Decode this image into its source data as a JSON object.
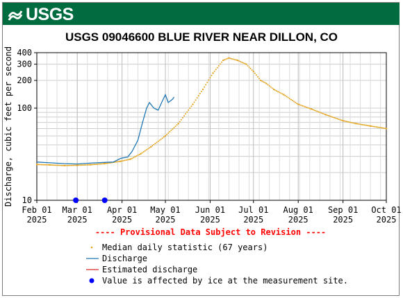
{
  "banner": {
    "logo_text": "USGS",
    "background_color": "#006c3f"
  },
  "chart_data": {
    "type": "line",
    "title": "USGS 09046600 BLUE RIVER NEAR DILLON, CO",
    "ylabel": "Discharge, cubic feet per second",
    "xlabel": "",
    "y_scale": "log",
    "ylim": [
      10,
      400
    ],
    "xlim": [
      "2025-02-01",
      "2025-10-01"
    ],
    "grid": true,
    "x_ticks": [
      {
        "date": "2025-02-01",
        "line1": "Feb 01",
        "line2": "2025"
      },
      {
        "date": "2025-03-01",
        "line1": "Mar 01",
        "line2": "2025"
      },
      {
        "date": "2025-04-01",
        "line1": "Apr 01",
        "line2": "2025"
      },
      {
        "date": "2025-05-01",
        "line1": "May 01",
        "line2": "2025"
      },
      {
        "date": "2025-06-01",
        "line1": "Jun 01",
        "line2": "2025"
      },
      {
        "date": "2025-07-01",
        "line1": "Jul 01",
        "line2": "2025"
      },
      {
        "date": "2025-08-01",
        "line1": "Aug 01",
        "line2": "2025"
      },
      {
        "date": "2025-09-01",
        "line1": "Sep 01",
        "line2": "2025"
      },
      {
        "date": "2025-10-01",
        "line1": "Oct 01",
        "line2": "2025"
      }
    ],
    "y_ticks": [
      {
        "value": 10,
        "label": "10"
      },
      {
        "value": 100,
        "label": "100"
      },
      {
        "value": 200,
        "label": "200"
      },
      {
        "value": 300,
        "label": "300"
      },
      {
        "value": 400,
        "label": "400"
      }
    ],
    "annotation": "---- Provisional Data Subject to Revision ----",
    "series": [
      {
        "name": "Median daily statistic (67 years)",
        "style": "dots",
        "color": "#e3a21a",
        "points": [
          {
            "x": "2025-02-01",
            "y": 24.5
          },
          {
            "x": "2025-02-10",
            "y": 24.2
          },
          {
            "x": "2025-02-20",
            "y": 23.8
          },
          {
            "x": "2025-03-01",
            "y": 24.0
          },
          {
            "x": "2025-03-10",
            "y": 24.3
          },
          {
            "x": "2025-03-20",
            "y": 25.0
          },
          {
            "x": "2025-03-31",
            "y": 26.5
          },
          {
            "x": "2025-04-07",
            "y": 28.0
          },
          {
            "x": "2025-04-14",
            "y": 32.0
          },
          {
            "x": "2025-04-21",
            "y": 38.0
          },
          {
            "x": "2025-05-01",
            "y": 50.0
          },
          {
            "x": "2025-05-10",
            "y": 68.0
          },
          {
            "x": "2025-05-20",
            "y": 110.0
          },
          {
            "x": "2025-05-27",
            "y": 160.0
          },
          {
            "x": "2025-06-03",
            "y": 240.0
          },
          {
            "x": "2025-06-10",
            "y": 330.0
          },
          {
            "x": "2025-06-14",
            "y": 350.0
          },
          {
            "x": "2025-06-20",
            "y": 330.0
          },
          {
            "x": "2025-06-26",
            "y": 300.0
          },
          {
            "x": "2025-07-01",
            "y": 250.0
          },
          {
            "x": "2025-07-06",
            "y": 200.0
          },
          {
            "x": "2025-07-10",
            "y": 185.0
          },
          {
            "x": "2025-07-15",
            "y": 160.0
          },
          {
            "x": "2025-07-22",
            "y": 140.0
          },
          {
            "x": "2025-08-01",
            "y": 110.0
          },
          {
            "x": "2025-08-10",
            "y": 98.0
          },
          {
            "x": "2025-08-20",
            "y": 85.0
          },
          {
            "x": "2025-09-01",
            "y": 73.0
          },
          {
            "x": "2025-09-10",
            "y": 68.0
          },
          {
            "x": "2025-09-20",
            "y": 64.0
          },
          {
            "x": "2025-10-01",
            "y": 60.0
          }
        ]
      },
      {
        "name": "Discharge",
        "style": "line",
        "color": "#1f77b4",
        "points": [
          {
            "x": "2025-02-01",
            "y": 26.0
          },
          {
            "x": "2025-02-10",
            "y": 25.5
          },
          {
            "x": "2025-02-20",
            "y": 25.0
          },
          {
            "x": "2025-03-01",
            "y": 24.8
          },
          {
            "x": "2025-03-10",
            "y": 25.3
          },
          {
            "x": "2025-03-20",
            "y": 25.8
          },
          {
            "x": "2025-03-26",
            "y": 26.0
          },
          {
            "x": "2025-03-31",
            "y": 28.5
          },
          {
            "x": "2025-04-05",
            "y": 29.5
          },
          {
            "x": "2025-04-08",
            "y": 34.0
          },
          {
            "x": "2025-04-12",
            "y": 45.0
          },
          {
            "x": "2025-04-15",
            "y": 68.0
          },
          {
            "x": "2025-04-18",
            "y": 100.0
          },
          {
            "x": "2025-04-20",
            "y": 115.0
          },
          {
            "x": "2025-04-23",
            "y": 100.0
          },
          {
            "x": "2025-04-26",
            "y": 95.0
          },
          {
            "x": "2025-04-29",
            "y": 120.0
          },
          {
            "x": "2025-05-01",
            "y": 140.0
          },
          {
            "x": "2025-05-03",
            "y": 115.0
          },
          {
            "x": "2025-05-06",
            "y": 125.0
          },
          {
            "x": "2025-05-07",
            "y": 132.0
          }
        ]
      },
      {
        "name": "Estimated discharge",
        "style": "line",
        "color": "#d62728",
        "points": []
      },
      {
        "name": "Value is affected by ice at the measurement site.",
        "style": "marker",
        "color": "#0000ff",
        "points": [
          {
            "x": "2025-02-28",
            "y": 10
          },
          {
            "x": "2025-03-20",
            "y": 10
          }
        ]
      }
    ]
  }
}
